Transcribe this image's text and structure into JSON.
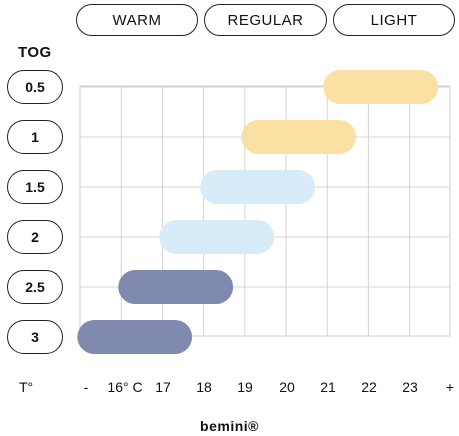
{
  "header": {
    "warm_label": "WARM",
    "regular_label": "REGULAR",
    "light_label": "LIGHT"
  },
  "tog_title": "TOG",
  "t_label": "T°",
  "brand": "bemini®",
  "chart_data": {
    "type": "range-bar",
    "title": "",
    "ylabel": "TOG",
    "xlabel": "T°",
    "x_ticks": [
      "-",
      "16° C",
      "17",
      "18",
      "19",
      "20",
      "21",
      "22",
      "23",
      "+"
    ],
    "categories": [
      "0.5",
      "1",
      "1.5",
      "2",
      "2.5",
      "3"
    ],
    "ranges": [
      {
        "tog": "0.5",
        "from_index": 6.3,
        "to_index": 9.1,
        "color": "#fbe0a3"
      },
      {
        "tog": "1",
        "from_index": 4.3,
        "to_index": 7.1,
        "color": "#fbe0a3"
      },
      {
        "tog": "1.5",
        "from_index": 3.3,
        "to_index": 6.1,
        "color": "#d7ecf8"
      },
      {
        "tog": "2",
        "from_index": 2.3,
        "to_index": 5.1,
        "color": "#d7ecf8"
      },
      {
        "tog": "2.5",
        "from_index": 1.3,
        "to_index": 4.1,
        "color": "#7f8aae"
      },
      {
        "tog": "3",
        "from_index": 0.3,
        "to_index": 3.1,
        "color": "#7f8aae"
      }
    ],
    "grid": true
  }
}
